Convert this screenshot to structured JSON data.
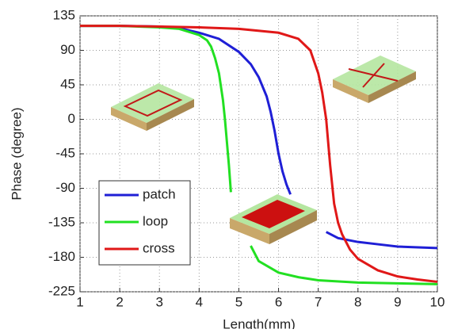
{
  "chart_data": {
    "type": "line",
    "xlabel": "Length(mm)",
    "ylabel": "Phase (degree)",
    "xlim": [
      1,
      10
    ],
    "ylim": [
      -225,
      135
    ],
    "xticks": [
      1,
      2,
      3,
      4,
      5,
      6,
      7,
      8,
      9,
      10
    ],
    "yticks": [
      135,
      90,
      45,
      0,
      -45,
      -90,
      -135,
      -180,
      -225
    ],
    "grid": true,
    "legend": "lower left",
    "series": [
      {
        "name": "patch",
        "color": "#1f1fd6",
        "x": [
          1,
          2,
          3,
          3.5,
          4,
          4.5,
          5,
          5.3,
          5.5,
          5.7,
          5.8,
          5.9,
          6,
          6.1,
          6.2,
          6.3,
          6.9,
          7.2,
          7.5,
          8,
          8.5,
          9,
          10
        ],
        "values": [
          122,
          122,
          121,
          119,
          113,
          105,
          88,
          72,
          55,
          30,
          10,
          -15,
          -45,
          -68,
          -85,
          -98,
          null,
          -147,
          -155,
          -160,
          -163,
          -166,
          -168
        ]
      },
      {
        "name": "loop",
        "color": "#22e022",
        "x": [
          1,
          2,
          3,
          3.5,
          4,
          4.2,
          4.3,
          4.4,
          4.5,
          4.6,
          4.65,
          4.7,
          4.75,
          4.8,
          5,
          5.3,
          5.5,
          6,
          6.5,
          7,
          8,
          9,
          10
        ],
        "values": [
          122,
          122,
          120,
          118,
          110,
          103,
          95,
          80,
          60,
          25,
          0,
          -30,
          -60,
          -95,
          null,
          -165,
          -185,
          -200,
          -206,
          -210,
          -213,
          -214,
          -215
        ]
      },
      {
        "name": "cross",
        "color": "#e01818",
        "x": [
          1,
          2,
          3,
          4,
          5,
          6,
          6.5,
          6.8,
          7,
          7.1,
          7.2,
          7.3,
          7.4,
          7.5,
          7.6,
          7.8,
          8,
          8.5,
          9,
          9.5,
          10
        ],
        "values": [
          122,
          122,
          121,
          120,
          118,
          113,
          105,
          90,
          60,
          35,
          0,
          -60,
          -110,
          -135,
          -150,
          -170,
          -182,
          -197,
          -205,
          -209,
          -212
        ]
      }
    ]
  }
}
